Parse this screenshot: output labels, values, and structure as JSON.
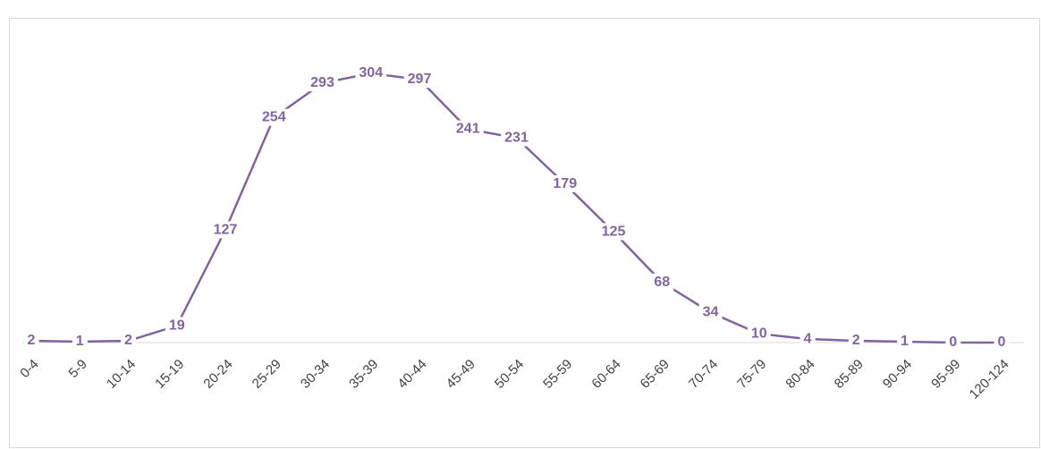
{
  "chart_data": {
    "type": "line",
    "categories": [
      "0-4",
      "5-9",
      "10-14",
      "15-19",
      "20-24",
      "25-29",
      "30-34",
      "35-39",
      "40-44",
      "45-49",
      "50-54",
      "55-59",
      "60-64",
      "65-69",
      "70-74",
      "75-79",
      "80-84",
      "85-89",
      "90-94",
      "95-99",
      "120-124"
    ],
    "values": [
      2,
      1,
      2,
      19,
      127,
      254,
      293,
      304,
      297,
      241,
      231,
      179,
      125,
      68,
      34,
      10,
      4,
      2,
      1,
      0,
      0
    ],
    "color": "#8064a2"
  }
}
